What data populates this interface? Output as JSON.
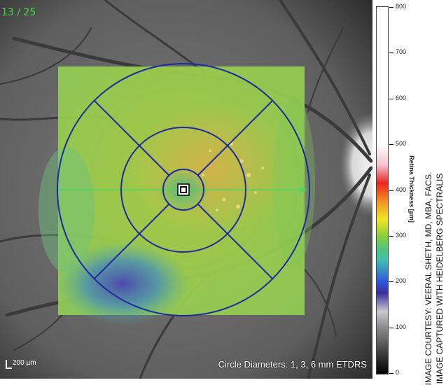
{
  "viewer": {
    "frame_counter": "13 / 25",
    "scale_label": "200 µm",
    "grid_caption": "Circle Diameters: 1, 3, 6 mm ETDRS"
  },
  "colorbar": {
    "title": "Retina Thickness [µm]",
    "ticks": [
      "800",
      "700",
      "600",
      "500",
      "400",
      "300",
      "200",
      "100",
      "0"
    ]
  },
  "credits": {
    "line1": "IMAGE COURTESY: VEERAL SHETH, MD, MBA, FACS.",
    "line2": "IMAGE CAPTURED WITH HEIDELBERG SPECTRALIS"
  },
  "colors": {
    "grid_lines": "#1e2a9e",
    "frame_counter": "#3fd83f"
  }
}
